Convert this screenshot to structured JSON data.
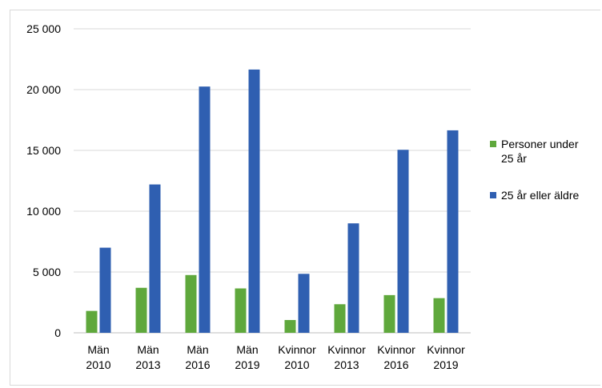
{
  "chart_data": {
    "type": "bar",
    "categories": [
      [
        "Män",
        "2010"
      ],
      [
        "Män",
        "2013"
      ],
      [
        "Män",
        "2016"
      ],
      [
        "Män",
        "2019"
      ],
      [
        "Kvinnor",
        "2010"
      ],
      [
        "Kvinnor",
        "2013"
      ],
      [
        "Kvinnor",
        "2016"
      ],
      [
        "Kvinnor",
        "2019"
      ]
    ],
    "series": [
      {
        "name": [
          "Personer under",
          "25 år"
        ],
        "color": "#5fa83c",
        "values": [
          1800,
          3700,
          4750,
          3650,
          1050,
          2350,
          3100,
          2850
        ]
      },
      {
        "name": [
          "25 år eller äldre"
        ],
        "color": "#2f5fb1",
        "values": [
          7000,
          12200,
          20250,
          21650,
          4850,
          9000,
          15050,
          16650
        ]
      }
    ],
    "y_ticks": [
      {
        "value": 0,
        "label": "0"
      },
      {
        "value": 5000,
        "label": "5 000"
      },
      {
        "value": 10000,
        "label": "10 000"
      },
      {
        "value": 15000,
        "label": "15 000"
      },
      {
        "value": 20000,
        "label": "20 000"
      },
      {
        "value": 25000,
        "label": "25 000"
      }
    ],
    "ylim": [
      0,
      25000
    ],
    "grid": true,
    "legend_position": "right"
  }
}
